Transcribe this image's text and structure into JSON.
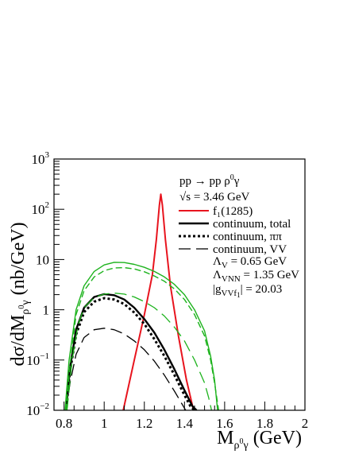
{
  "chart_data": {
    "type": "line",
    "xlabel": "M_{ρ⁰γ} (GeV)",
    "ylabel": "dσ/dM_{ρ⁰γ} (nb/GeV)",
    "x_scale": "linear",
    "y_scale": "log",
    "xlim": [
      0.75,
      2.0
    ],
    "ylim": [
      0.01,
      1000
    ],
    "x_ticks": [
      {
        "value": 0.8,
        "label": "0.8"
      },
      {
        "value": 1.0,
        "label": "1"
      },
      {
        "value": 1.2,
        "label": "1.2"
      },
      {
        "value": 1.4,
        "label": "1.4"
      },
      {
        "value": 1.6,
        "label": "1.6"
      },
      {
        "value": 1.8,
        "label": "1.8"
      },
      {
        "value": 2.0,
        "label": "2"
      }
    ],
    "y_ticks": [
      {
        "value": 0.01,
        "base": "10",
        "exp": "−2"
      },
      {
        "value": 0.1,
        "base": "10",
        "exp": "−1"
      },
      {
        "value": 1,
        "base": "1",
        "exp": ""
      },
      {
        "value": 10,
        "base": "10",
        "exp": ""
      },
      {
        "value": 100,
        "base": "10",
        "exp": "2"
      },
      {
        "value": 1000,
        "base": "10",
        "exp": "3"
      }
    ],
    "annotations": [
      "pp → pp ρ⁰γ",
      "√s = 3.46 GeV",
      "Λ_V = 0.65 GeV",
      "Λ_VNN = 1.35 GeV",
      "|g_VVf₁| = 20.03"
    ],
    "legend": [
      {
        "label": "f₁(1285)",
        "color": "#e8141e",
        "style": "solid",
        "width": 2
      },
      {
        "label": "continuum, total",
        "color": "#000000",
        "style": "solid",
        "width": 2.4
      },
      {
        "label": "continuum, ππ",
        "color": "#000000",
        "style": "dotted",
        "width": 3
      },
      {
        "label": "continuum, VV",
        "color": "#000000",
        "style": "longdash",
        "width": 1.3
      }
    ],
    "series": [
      {
        "name": "f₁(1285)",
        "color": "#e8141e",
        "style": "solid",
        "width": 2,
        "x": [
          1.095,
          1.15,
          1.2,
          1.24,
          1.26,
          1.275,
          1.282,
          1.29,
          1.305,
          1.33,
          1.37,
          1.41,
          1.445
        ],
        "y": [
          0.01,
          0.1,
          0.8,
          5,
          25,
          120,
          200,
          120,
          25,
          3,
          0.3,
          0.04,
          0.01
        ]
      },
      {
        "name": "continuum, total",
        "color": "#000000",
        "style": "solid",
        "width": 2.4,
        "x": [
          0.81,
          0.83,
          0.86,
          0.9,
          0.95,
          1.0,
          1.05,
          1.1,
          1.15,
          1.2,
          1.25,
          1.3,
          1.35,
          1.4,
          1.44,
          1.46
        ],
        "y": [
          0.01,
          0.07,
          0.4,
          1.1,
          1.8,
          2.05,
          1.95,
          1.6,
          1.1,
          0.65,
          0.35,
          0.16,
          0.065,
          0.025,
          0.012,
          0.01
        ]
      },
      {
        "name": "continuum, ππ",
        "color": "#000000",
        "style": "dotted",
        "width": 3,
        "x": [
          0.81,
          0.83,
          0.86,
          0.9,
          0.95,
          1.0,
          1.05,
          1.1,
          1.15,
          1.2,
          1.25,
          1.3,
          1.35,
          1.4,
          1.43,
          1.45
        ],
        "y": [
          0.01,
          0.06,
          0.32,
          0.9,
          1.45,
          1.7,
          1.6,
          1.3,
          0.88,
          0.52,
          0.26,
          0.12,
          0.05,
          0.02,
          0.012,
          0.01
        ]
      },
      {
        "name": "continuum, VV",
        "color": "#000000",
        "style": "longdash",
        "width": 1.3,
        "x": [
          0.81,
          0.83,
          0.86,
          0.9,
          0.95,
          1.0,
          1.05,
          1.1,
          1.15,
          1.2,
          1.25,
          1.3,
          1.35,
          1.4,
          1.44
        ],
        "y": [
          0.01,
          0.035,
          0.13,
          0.28,
          0.4,
          0.43,
          0.4,
          0.33,
          0.24,
          0.16,
          0.095,
          0.05,
          0.024,
          0.011,
          0.006
        ]
      },
      {
        "name": "",
        "color": "#1db31d",
        "style": "solid",
        "width": 1.4,
        "x": [
          0.805,
          0.825,
          0.86,
          0.9,
          0.95,
          1.0,
          1.05,
          1.1,
          1.15,
          1.2,
          1.25,
          1.3,
          1.35,
          1.4,
          1.45,
          1.5,
          1.53,
          1.55,
          1.565
        ],
        "y": [
          0.01,
          0.1,
          1.0,
          3.0,
          5.8,
          7.8,
          8.8,
          8.7,
          8.0,
          7.0,
          5.8,
          4.5,
          3.2,
          2.0,
          1.0,
          0.38,
          0.12,
          0.04,
          0.01
        ]
      },
      {
        "name": "",
        "color": "#1db31d",
        "style": "dashed",
        "width": 1.4,
        "x": [
          0.81,
          0.83,
          0.86,
          0.9,
          0.95,
          1.0,
          1.05,
          1.1,
          1.15,
          1.2,
          1.25,
          1.3,
          1.35,
          1.4,
          1.45,
          1.5,
          1.53,
          1.55,
          1.57
        ],
        "y": [
          0.01,
          0.08,
          0.8,
          2.4,
          4.5,
          6.0,
          6.8,
          6.9,
          6.5,
          5.7,
          4.7,
          3.7,
          2.6,
          1.6,
          0.8,
          0.3,
          0.1,
          0.035,
          0.01
        ]
      },
      {
        "name": "",
        "color": "#1db31d",
        "style": "longdash",
        "width": 1.3,
        "x": [
          0.815,
          0.84,
          0.87,
          0.9,
          0.95,
          1.0,
          1.05,
          1.1,
          1.15,
          1.2,
          1.25,
          1.3,
          1.35,
          1.4,
          1.45,
          1.5,
          1.52,
          1.535
        ],
        "y": [
          0.01,
          0.1,
          0.5,
          1.1,
          1.75,
          2.05,
          2.15,
          2.05,
          1.8,
          1.45,
          1.1,
          0.75,
          0.45,
          0.24,
          0.1,
          0.035,
          0.018,
          0.01
        ]
      }
    ]
  }
}
